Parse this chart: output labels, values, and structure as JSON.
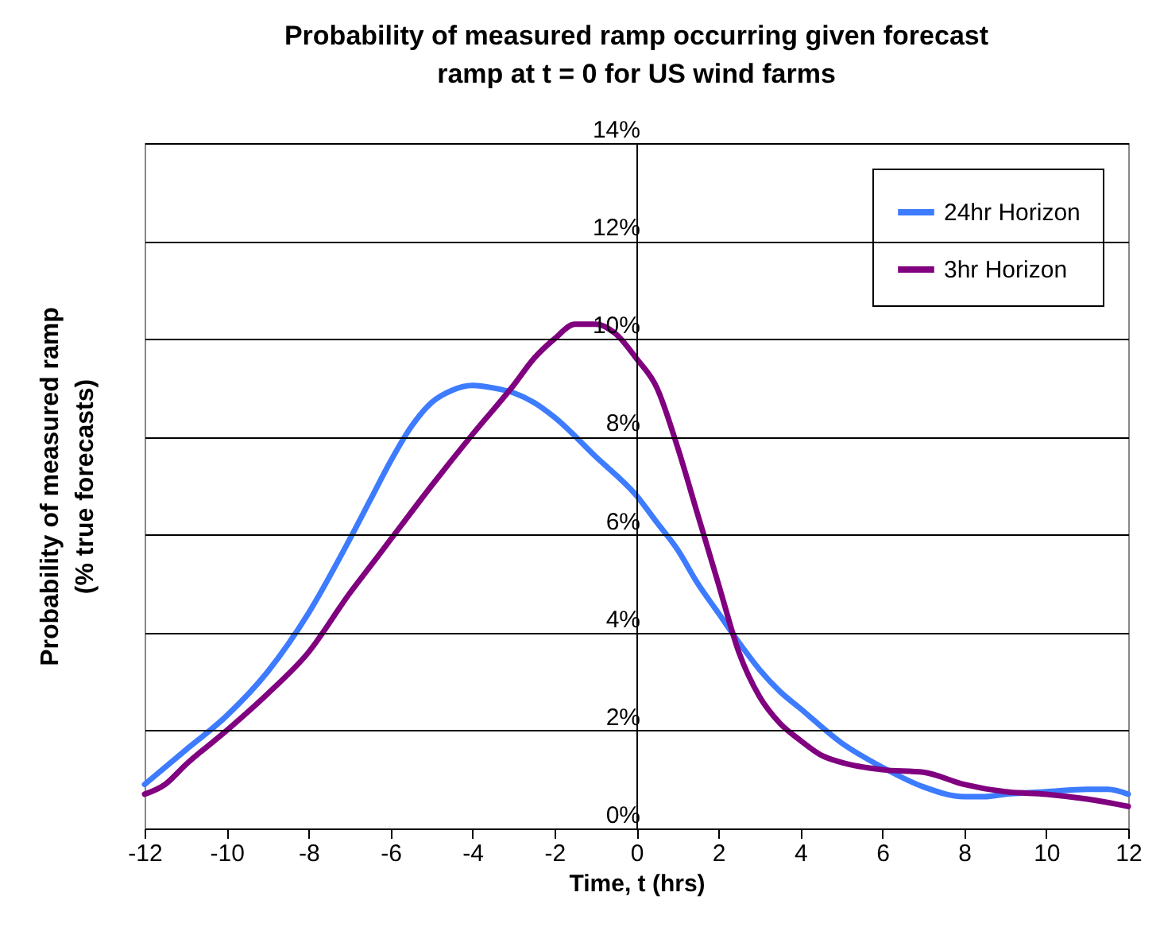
{
  "chart_data": {
    "type": "line",
    "title": "Probability of measured ramp occurring given forecast\nramp at t = 0  for US wind farms",
    "xlabel": "Time, t (hrs)",
    "ylabel": "Probability of measured ramp\n(% true forecasts)",
    "xlim": [
      -12,
      12
    ],
    "xticks": [
      -12,
      -10,
      -8,
      -6,
      -4,
      -2,
      0,
      2,
      4,
      6,
      8,
      10,
      12
    ],
    "ylim": [
      0,
      14
    ],
    "yticks": [
      {
        "value": 0,
        "label": "0%"
      },
      {
        "value": 2,
        "label": "2%"
      },
      {
        "value": 4,
        "label": "4%"
      },
      {
        "value": 6,
        "label": "6%"
      },
      {
        "value": 8,
        "label": "8%"
      },
      {
        "value": 10,
        "label": "10%"
      },
      {
        "value": 12,
        "label": "12%"
      },
      {
        "value": 14,
        "label": "14%"
      }
    ],
    "grid": "y",
    "legend": "top right",
    "line_style": "solid",
    "series": [
      {
        "name": "24hr Horizon",
        "color": "#3d7bff",
        "x": [
          -12,
          -11,
          -10,
          -9,
          -8,
          -7,
          -6.5,
          -6,
          -5.5,
          -5,
          -4.5,
          -4,
          -3.5,
          -3,
          -2.5,
          -2,
          -1,
          0,
          0.5,
          1,
          1.5,
          2,
          2.5,
          3,
          3.5,
          4,
          5,
          6,
          7,
          8,
          8.5,
          9,
          10,
          11,
          11.5,
          12
        ],
        "values": [
          0.9,
          1.6,
          2.3,
          3.2,
          4.4,
          5.9,
          6.7,
          7.5,
          8.2,
          8.7,
          8.95,
          9.05,
          9.0,
          8.9,
          8.7,
          8.4,
          7.6,
          6.8,
          6.25,
          5.7,
          5.0,
          4.4,
          3.8,
          3.25,
          2.8,
          2.45,
          1.75,
          1.25,
          0.85,
          0.65,
          0.65,
          0.7,
          0.75,
          0.8,
          0.8,
          0.7
        ]
      },
      {
        "name": "3hr Horizon",
        "color": "#800080",
        "x": [
          -12,
          -11.5,
          -11,
          -10,
          -9,
          -8,
          -7,
          -6.5,
          -6,
          -5,
          -4,
          -3,
          -2.5,
          -2,
          -1.5,
          -1,
          -0.5,
          0,
          0.5,
          1,
          1.5,
          2,
          2.5,
          3,
          3.5,
          4,
          4.5,
          5,
          6,
          7,
          8,
          9,
          10,
          11,
          12
        ],
        "values": [
          0.7,
          0.9,
          1.3,
          2.0,
          2.75,
          3.6,
          4.8,
          5.35,
          5.9,
          7.0,
          8.05,
          9.05,
          9.6,
          10.0,
          10.3,
          10.3,
          10.1,
          9.6,
          9.0,
          7.8,
          6.4,
          5.0,
          3.6,
          2.7,
          2.15,
          1.8,
          1.5,
          1.35,
          1.2,
          1.15,
          0.9,
          0.75,
          0.7,
          0.6,
          0.45
        ]
      }
    ]
  }
}
